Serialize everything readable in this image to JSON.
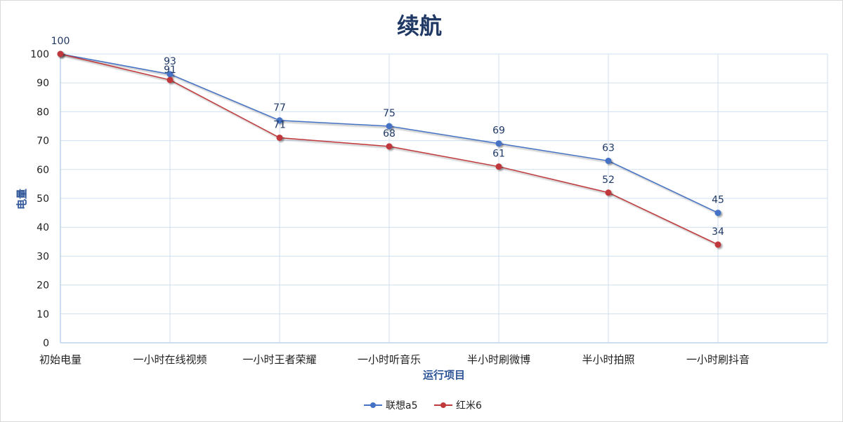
{
  "chart_data": {
    "type": "line",
    "title": "续航",
    "xlabel": "运行项目",
    "ylabel": "电量",
    "categories": [
      "初始电量",
      "一小时在线视频",
      "一小时王者荣耀",
      "一小时听音乐",
      "半小时刷微博",
      "半小时拍照",
      "一小时刷抖音"
    ],
    "ylim": [
      0,
      100
    ],
    "yticks": [
      0,
      10,
      20,
      30,
      40,
      50,
      60,
      70,
      80,
      90,
      100
    ],
    "grid": true,
    "legend_position": "bottom",
    "series": [
      {
        "name": "联想a5",
        "color": "#4472c4",
        "values": [
          100,
          93,
          77,
          75,
          69,
          63,
          45
        ]
      },
      {
        "name": "红米6",
        "color": "#c0393b",
        "values": [
          100,
          91,
          71,
          68,
          61,
          52,
          34
        ]
      }
    ]
  }
}
